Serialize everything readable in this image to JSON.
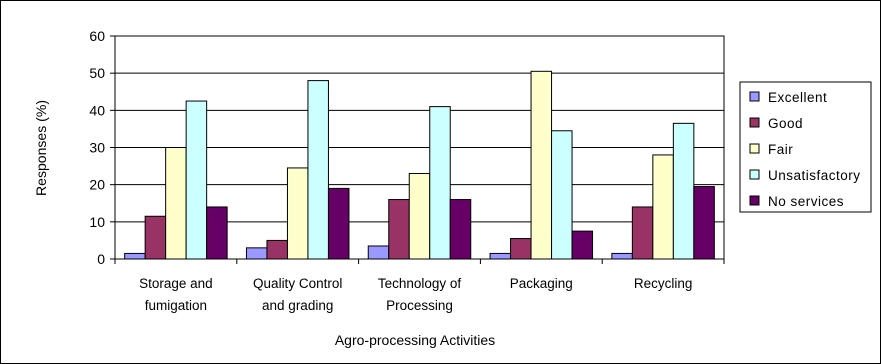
{
  "chart_data": {
    "type": "bar",
    "title": "",
    "xlabel": "Agro-processing Activities",
    "ylabel": "Responses (%)",
    "ylim": [
      0,
      60
    ],
    "yticks": [
      0,
      10,
      20,
      30,
      40,
      50,
      60
    ],
    "grid": true,
    "legend_position": "right",
    "categories": [
      [
        "Storage and",
        "fumigation"
      ],
      [
        "Quality Control",
        "and grading"
      ],
      [
        "Technology of",
        "Processing"
      ],
      [
        "Packaging"
      ],
      [
        "Recycling"
      ]
    ],
    "series": [
      {
        "name": "Excellent",
        "color": "#9999ff",
        "values": [
          1.5,
          3,
          3.5,
          1.5,
          1.5
        ]
      },
      {
        "name": "Good",
        "color": "#993366",
        "values": [
          11.5,
          5,
          16,
          5.5,
          14
        ]
      },
      {
        "name": "Fair",
        "color": "#ffffcc",
        "values": [
          30,
          24.5,
          23,
          50.5,
          28
        ]
      },
      {
        "name": "Unsatisfactory",
        "color": "#ccffff",
        "values": [
          42.5,
          48,
          41,
          34.5,
          36.5
        ]
      },
      {
        "name": "No services",
        "color": "#660066",
        "values": [
          14,
          19,
          16,
          7.5,
          19.5
        ]
      }
    ]
  }
}
